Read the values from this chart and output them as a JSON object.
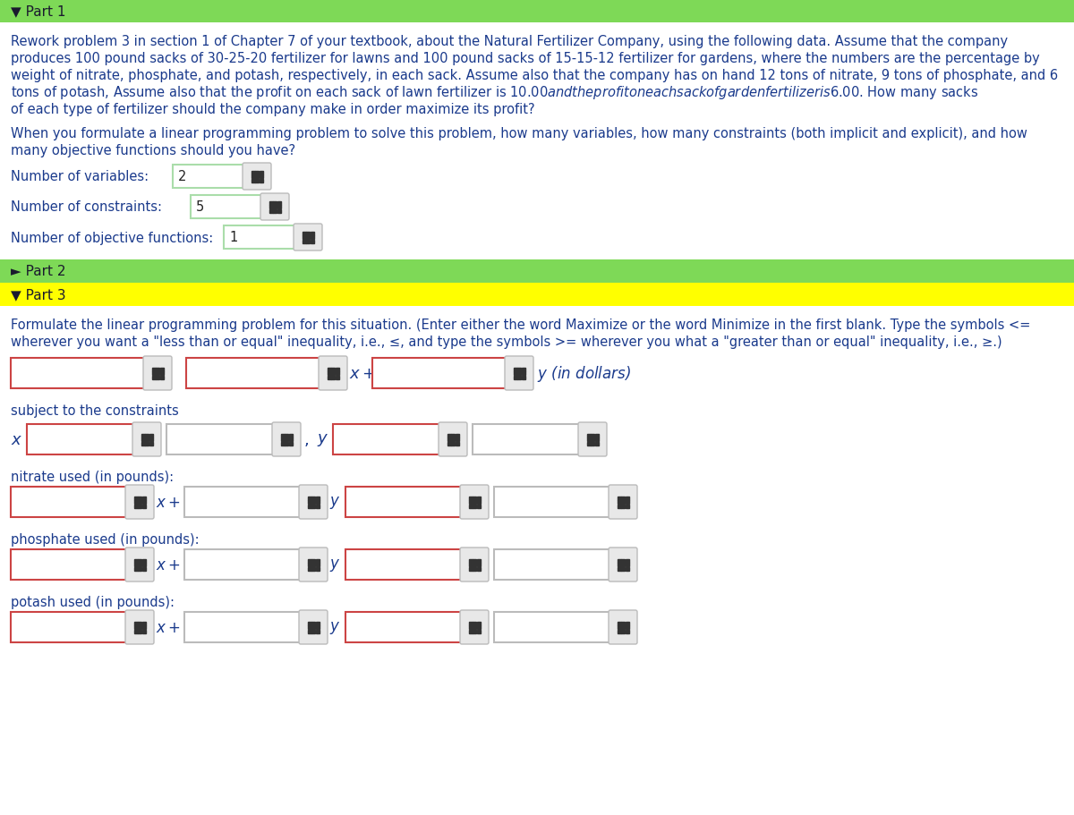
{
  "bg_color": "#ffffff",
  "part1_header_color": "#7ED957",
  "part2_header_color": "#7ED957",
  "part3_header_color": "#FFFF00",
  "body_text_color": "#1a3a8c",
  "dark_text_color": "#333333",
  "part1_title": "▼ Part 1",
  "part2_title": "► Part 2",
  "part3_title": "▼ Part 3",
  "para1_lines": [
    "Rework problem 3 in section 1 of Chapter 7 of your textbook, about the Natural Fertilizer Company, using the following data. Assume that the company",
    "produces 100 pound sacks of 30-25-20 fertilizer for lawns and 100 pound sacks of 15-15-12 fertilizer for gardens, where the numbers are the percentage by",
    "weight of nitrate, phosphate, and potash, respectively, in each sack. Assume also that the company has on hand 12 tons of nitrate, 9 tons of phosphate, and 6",
    "tons of potash, Assume also that the profit on each sack of lawn fertilizer is $10.00 and the profit on each sack of garden fertilizer is $6.00. How many sacks",
    "of each type of fertilizer should the company make in order maximize its profit?"
  ],
  "para2_lines": [
    "When you formulate a linear programming problem to solve this problem, how many variables, how many constraints (both implicit and explicit), and how",
    "many objective functions should you have?"
  ],
  "label_vars": "Number of variables:",
  "label_constraints": "Number of constraints:",
  "label_obj": "Number of objective functions:",
  "val_vars": "2",
  "val_constraints": "5",
  "val_obj": "1",
  "part3_instr_lines": [
    "Formulate the linear programming problem for this situation. (Enter either the word Maximize or the word Minimize in the first blank. Type the symbols <=",
    "wherever you want a \"less than or equal\" inequality, i.e., ≤, and type the symbols >= wherever you what a \"greater than or equal\" inequality, i.e., ≥.)"
  ],
  "subj_label": "subject to the constraints",
  "nitrate_label": "nitrate used (in pounds):",
  "phosphate_label": "phosphate used (in pounds):",
  "potash_label": "potash used (in pounds):"
}
